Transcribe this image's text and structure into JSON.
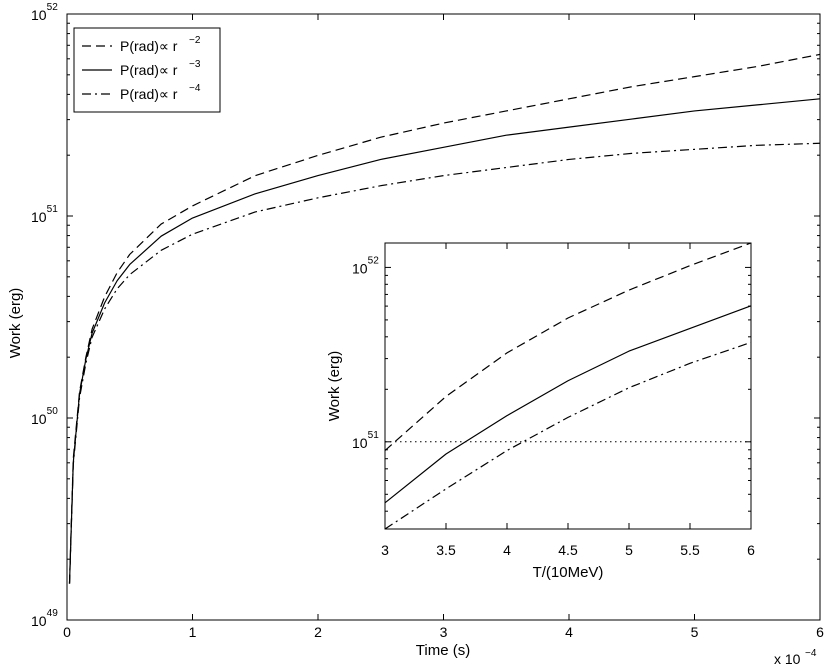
{
  "chart_data": [
    {
      "type": "line",
      "role": "main",
      "xlabel": "Time (s)",
      "ylabel": "Work (erg)",
      "x_multiplier_label": "x 10",
      "x_multiplier_exp": "−4",
      "x_scale_factor": 0.0001,
      "xlim": [
        0,
        6
      ],
      "ylim_log10": [
        49,
        52
      ],
      "yscale": "log",
      "x_ticks": [
        0,
        1,
        2,
        3,
        4,
        5,
        6
      ],
      "y_ticks": [
        {
          "base": "10",
          "exp": "49",
          "log10": 49
        },
        {
          "base": "10",
          "exp": "50",
          "log10": 50
        },
        {
          "base": "10",
          "exp": "51",
          "log10": 51
        },
        {
          "base": "10",
          "exp": "52",
          "log10": 52
        }
      ],
      "legend": {
        "position": "top-left",
        "entries": [
          {
            "text": "P(rad)∝ r",
            "exp": "−2",
            "style": "dashed"
          },
          {
            "text": "P(rad)∝ r",
            "exp": "−3",
            "style": "solid"
          },
          {
            "text": "P(rad)∝ r",
            "exp": "−4",
            "style": "dashdot"
          }
        ]
      },
      "series": [
        {
          "style": "dashed",
          "x": [
            0.02,
            0.05,
            0.1,
            0.15,
            0.2,
            0.3,
            0.4,
            0.5,
            0.75,
            1.0,
            1.5,
            2.0,
            2.5,
            3.0,
            3.5,
            4.0,
            4.5,
            5.0,
            5.5,
            6.0
          ],
          "log10y": [
            49.18,
            49.8,
            50.13,
            50.3,
            50.44,
            50.6,
            50.72,
            50.81,
            50.96,
            51.05,
            51.2,
            51.3,
            51.39,
            51.46,
            51.52,
            51.58,
            51.64,
            51.69,
            51.74,
            51.8
          ]
        },
        {
          "style": "solid",
          "x": [
            0.02,
            0.05,
            0.1,
            0.15,
            0.2,
            0.3,
            0.4,
            0.5,
            0.75,
            1.0,
            1.5,
            2.0,
            2.5,
            3.0,
            3.5,
            4.0,
            4.5,
            5.0,
            5.5,
            6.0
          ],
          "log10y": [
            49.18,
            49.78,
            50.12,
            50.29,
            50.42,
            50.57,
            50.68,
            50.76,
            50.9,
            50.99,
            51.11,
            51.2,
            51.28,
            51.34,
            51.4,
            51.44,
            51.48,
            51.52,
            51.55,
            51.58
          ]
        },
        {
          "style": "dashdot",
          "x": [
            0.02,
            0.05,
            0.1,
            0.15,
            0.2,
            0.3,
            0.4,
            0.5,
            0.75,
            1.0,
            1.5,
            2.0,
            2.5,
            3.0,
            3.5,
            4.0,
            4.5,
            5.0,
            5.5,
            6.0
          ],
          "log10y": [
            49.18,
            49.77,
            50.1,
            50.27,
            50.4,
            50.54,
            50.64,
            50.71,
            50.83,
            50.91,
            51.02,
            51.09,
            51.15,
            51.2,
            51.24,
            51.28,
            51.31,
            51.33,
            51.35,
            51.36
          ]
        }
      ]
    },
    {
      "type": "line",
      "role": "inset",
      "xlabel": "T/(10MeV)",
      "ylabel": "Work (erg)",
      "xlim": [
        3,
        6
      ],
      "ylim_log10": [
        50.5,
        52.14
      ],
      "yscale": "log",
      "x_ticks": [
        {
          "value": 3,
          "label": "3"
        },
        {
          "value": 3.5,
          "label": "3.5"
        },
        {
          "value": 4,
          "label": "4"
        },
        {
          "value": 4.5,
          "label": "4.5"
        },
        {
          "value": 5,
          "label": "5"
        },
        {
          "value": 5.5,
          "label": "5.5"
        },
        {
          "value": 6,
          "label": "6"
        }
      ],
      "y_ticks": [
        {
          "base": "10",
          "exp": "51",
          "log10": 51
        },
        {
          "base": "10",
          "exp": "52",
          "log10": 52
        }
      ],
      "reference_line": {
        "log10y": 51,
        "style": "dotted"
      },
      "series": [
        {
          "style": "dashed",
          "x": [
            3.0,
            3.5,
            4.0,
            4.5,
            5.0,
            5.5,
            6.0
          ],
          "log10y": [
            50.95,
            51.26,
            51.51,
            51.71,
            51.87,
            52.01,
            52.14
          ]
        },
        {
          "style": "solid",
          "x": [
            3.0,
            3.5,
            4.0,
            4.5,
            5.0,
            5.5,
            6.0
          ],
          "log10y": [
            50.65,
            50.93,
            51.15,
            51.35,
            51.52,
            51.65,
            51.78
          ]
        },
        {
          "style": "dashdot",
          "x": [
            3.0,
            3.5,
            4.0,
            4.5,
            5.0,
            5.5,
            6.0
          ],
          "log10y": [
            50.46,
            50.73,
            50.95,
            51.14,
            51.31,
            51.45,
            51.57
          ]
        }
      ]
    }
  ]
}
